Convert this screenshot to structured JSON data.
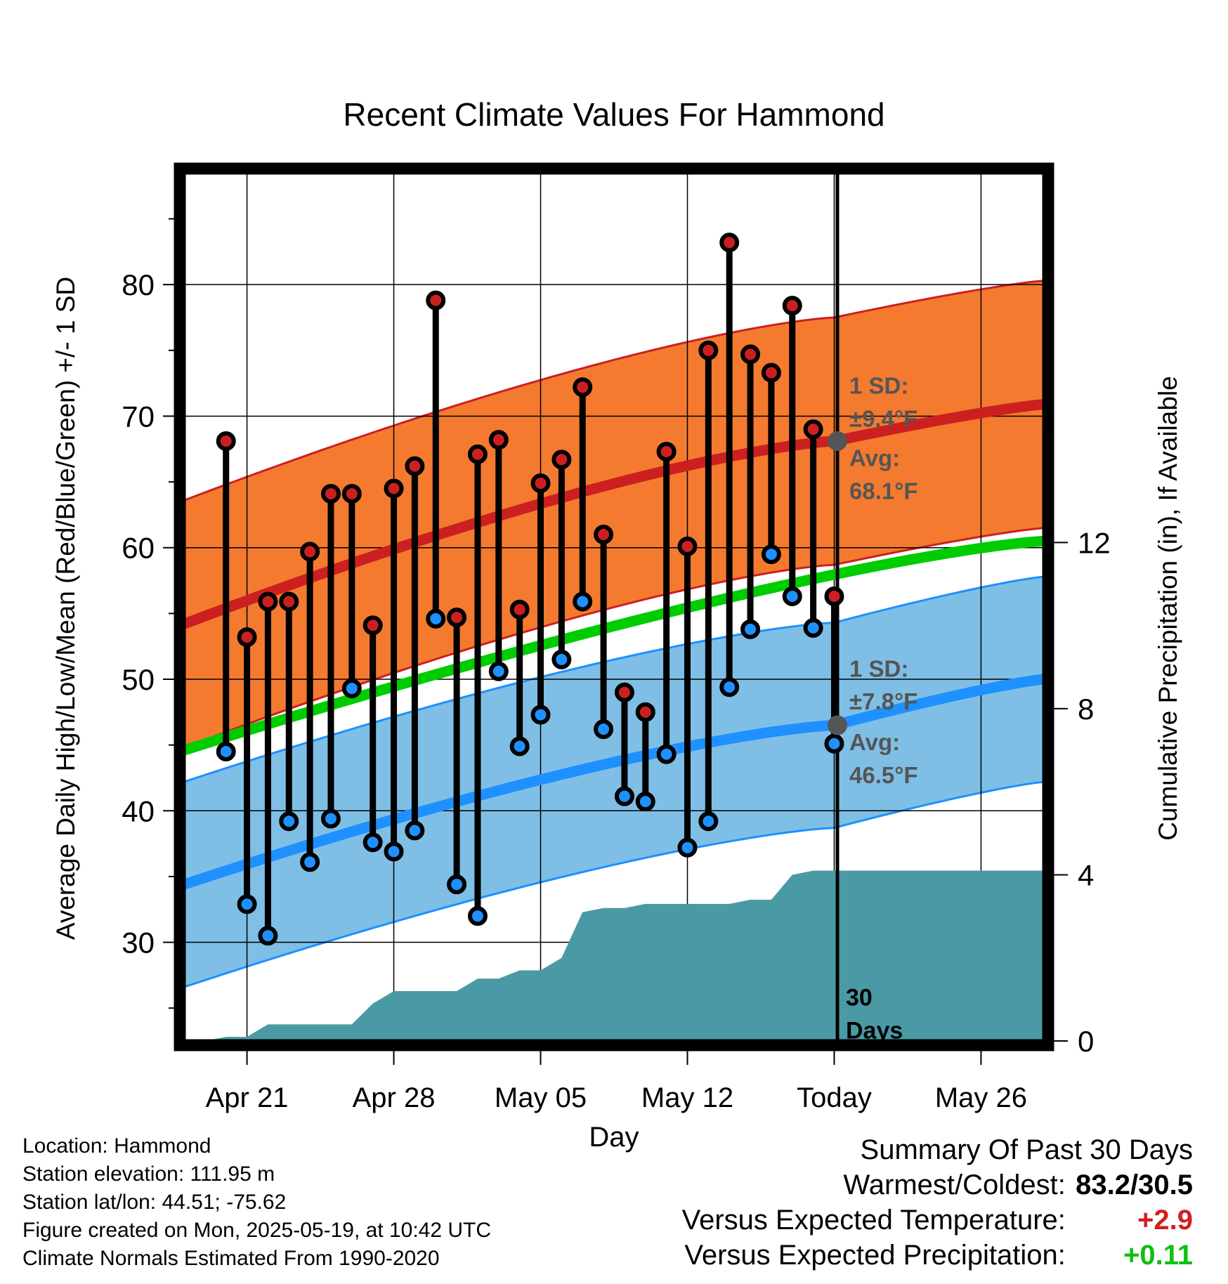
{
  "chart_data": {
    "type": "line",
    "title": "Recent Climate Values For Hammond",
    "xlabel": "Day",
    "ylabel": "Average Daily High/Low/Mean (Red/Blue/Green) +/- 1 SD",
    "y2label": "Cumulative Precipitation (in), If Available",
    "x_tick_labels": [
      "Apr 21",
      "Apr 28",
      "May 05",
      "May 12",
      "Today",
      "May 26"
    ],
    "y_ticks": [
      30,
      40,
      50,
      60,
      70,
      80
    ],
    "y2_ticks": [
      0,
      4,
      8,
      12
    ],
    "ylim": [
      22.5,
      88.5
    ],
    "y2lim": [
      0,
      20.9
    ],
    "xlim_days_before_today": [
      -31,
      10
    ],
    "grid": true,
    "colors": {
      "high_band": "#f47a30",
      "high_line": "#cc2020",
      "low_band": "#7fbfe6",
      "low_line": "#1e90ff",
      "mean_line": "#00cc00",
      "precip": "#4a9aa5",
      "high_marker": "#cc2020",
      "low_marker": "#1e90ff",
      "today_marker": "#555555"
    },
    "normal_high": {
      "start": 54.2,
      "today": 68.1,
      "end": 70.9,
      "sd": 9.4
    },
    "normal_low": {
      "start": 34.4,
      "today": 46.5,
      "end": 50.0,
      "sd": 7.8
    },
    "normal_mean": {
      "start": 44.6,
      "end": 60.5
    },
    "series": [
      {
        "name": "High",
        "values": [
          68.1,
          53.2,
          55.9,
          55.9,
          59.7,
          64.1,
          64.1,
          54.1,
          64.5,
          66.2,
          78.8,
          54.7,
          67.1,
          68.2,
          55.3,
          64.9,
          66.7,
          72.2,
          61.0,
          49.0,
          47.5,
          67.3,
          60.1,
          75.0,
          83.2,
          74.7,
          73.3,
          78.4,
          69.0,
          56.3
        ]
      },
      {
        "name": "Low",
        "values": [
          44.5,
          32.9,
          30.5,
          39.2,
          36.1,
          39.4,
          49.3,
          37.6,
          36.9,
          38.5,
          54.6,
          34.4,
          32.0,
          50.6,
          44.9,
          47.3,
          51.5,
          55.9,
          46.2,
          41.1,
          40.7,
          44.3,
          37.2,
          39.2,
          49.4,
          53.8,
          59.5,
          56.3,
          53.9,
          45.1
        ]
      }
    ],
    "precip_cumulative": [
      0.0,
      0.1,
      0.1,
      0.4,
      0.4,
      0.4,
      0.4,
      0.4,
      0.9,
      1.2,
      1.2,
      1.2,
      1.2,
      1.5,
      1.5,
      1.7,
      1.7,
      2.0,
      3.1,
      3.2,
      3.2,
      3.3,
      3.3,
      3.3,
      3.3,
      3.3,
      3.4,
      3.4,
      4.0,
      4.1,
      4.1
    ],
    "annotations": {
      "high_sd": [
        "1 SD:",
        "±9.4°F"
      ],
      "high_avg": [
        "Avg:",
        "68.1°F"
      ],
      "low_sd": [
        "1 SD:",
        "±7.8°F"
      ],
      "low_avg": [
        "Avg:",
        "46.5°F"
      ],
      "days": [
        "30",
        "Days"
      ]
    }
  },
  "info": {
    "location": "Location: Hammond",
    "elevation": "Station elevation: 111.95 m",
    "latlon": "Station lat/lon: 44.51; -75.62",
    "created": "Figure created on Mon, 2025-05-19, at 10:42 UTC",
    "normals": "Climate Normals Estimated From 1990-2020"
  },
  "summary": {
    "title": "Summary Of Past 30 Days",
    "warm_cold_label": "Warmest/Coldest:",
    "warm_cold_value": "83.2/30.5",
    "temp_label": "Versus Expected Temperature:",
    "temp_value": "+2.9",
    "precip_label": "Versus Expected Precipitation:",
    "precip_value": "+0.11"
  }
}
